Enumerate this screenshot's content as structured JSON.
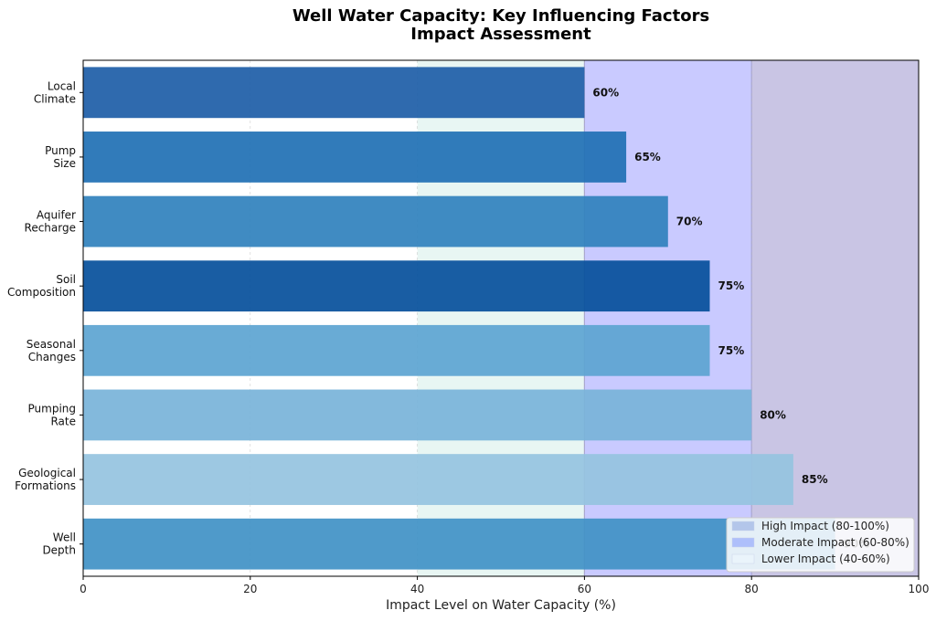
{
  "chart_data": {
    "type": "bar",
    "orientation": "horizontal",
    "title_lines": [
      "Well Water Capacity: Key Influencing Factors",
      "Impact Assessment"
    ],
    "xlabel": "Impact Level on Water Capacity (%)",
    "ylabel": "",
    "xlim": [
      0,
      100
    ],
    "xticks": [
      "0",
      "20",
      "40",
      "60",
      "80",
      "100"
    ],
    "grid": "vertical dashed",
    "categories": [
      {
        "lines": [
          "Local",
          "Climate"
        ],
        "value": 60,
        "label": "60%",
        "color": "#1f5fa8"
      },
      {
        "lines": [
          "Pump",
          "Size"
        ],
        "value": 65,
        "label": "65%",
        "color": "#2171b5"
      },
      {
        "lines": [
          "Aquifer",
          "Recharge"
        ],
        "value": 70,
        "label": "70%",
        "color": "#3182bd"
      },
      {
        "lines": [
          "Soil",
          "Composition"
        ],
        "value": 75,
        "label": "75%",
        "color": "#08519c"
      },
      {
        "lines": [
          "Seasonal",
          "Changes"
        ],
        "value": 75,
        "label": "75%",
        "color": "#5ea5d2"
      },
      {
        "lines": [
          "Pumping",
          "Rate"
        ],
        "value": 80,
        "label": "80%",
        "color": "#7ab4d9"
      },
      {
        "lines": [
          "Geological",
          "Formations"
        ],
        "value": 85,
        "label": "85%",
        "color": "#96c4e0"
      },
      {
        "lines": [
          "Well",
          "Depth"
        ],
        "value": 90,
        "label": "90%",
        "color": "#4292c6"
      }
    ],
    "impact_bands": [
      {
        "range": [
          40,
          60
        ],
        "label": "Lower Impact (40-60%)",
        "color": "#e8f6f3"
      },
      {
        "range": [
          60,
          80
        ],
        "label": "Moderate Impact (60-80%)",
        "color": "#c9caff"
      },
      {
        "range": [
          80,
          100
        ],
        "label": "High Impact (80-100%)",
        "color": "#c9c5e4"
      }
    ],
    "legend": {
      "placement": "bottom-right",
      "entries": [
        {
          "label": "High Impact (80-100%)",
          "color": "#b3c6ea"
        },
        {
          "label": "Moderate Impact (60-80%)",
          "color": "#aebffb"
        },
        {
          "label": "Lower Impact (40-60%)",
          "color": "#eaf4fb"
        }
      ]
    }
  }
}
